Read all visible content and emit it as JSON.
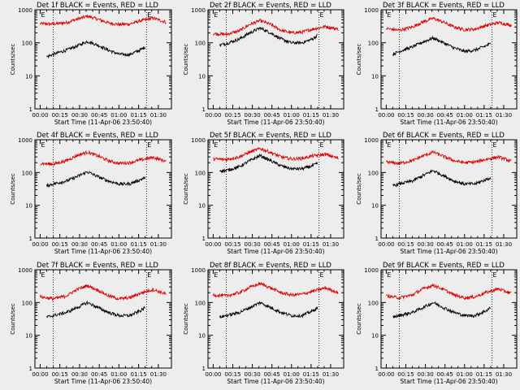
{
  "figure": {
    "background": "#ededed",
    "colors": {
      "events": "#000000",
      "lld": "#dd0000"
    }
  },
  "chart_data": [
    {
      "type": "line",
      "title": "Det 1f BLACK = Events, RED = LLD",
      "xlabel": "Start Time (11-Apr-06 23:50:40)",
      "ylabel": "Counts/sec",
      "yscale": "log",
      "ylim": [
        1,
        1000
      ],
      "x_ticks": [
        "00:00",
        "00:15",
        "00:30",
        "00:45",
        "01:00",
        "01:15",
        "01:30"
      ],
      "y_ticks": [
        "1",
        "10",
        "100",
        "1000"
      ],
      "markers": [
        {
          "label": "E",
          "x_min": 0
        },
        {
          "label": "E",
          "x_min": 81
        }
      ],
      "dotted_lines_x_min": [
        10,
        81
      ],
      "xlim_min": [
        -4,
        100
      ],
      "series": [
        {
          "x_min": [
            0,
            10,
            20,
            28,
            36,
            44,
            52,
            60,
            68,
            76,
            86,
            96
          ],
          "values": [
            380,
            370,
            410,
            520,
            640,
            520,
            400,
            360,
            370,
            460,
            560,
            420
          ]
        },
        {
          "x_min": [
            5,
            10,
            20,
            28,
            36,
            44,
            52,
            60,
            68,
            76,
            80
          ],
          "values": [
            38,
            45,
            60,
            80,
            110,
            85,
            60,
            45,
            44,
            60,
            75
          ]
        }
      ]
    },
    {
      "type": "line",
      "title": "Det 2f BLACK = Events, RED = LLD",
      "xlabel": "Start Time (11-Apr-06 23:50:40)",
      "ylabel": "Counts/sec",
      "yscale": "log",
      "ylim": [
        1,
        1000
      ],
      "x_ticks": [
        "00:00",
        "00:15",
        "00:30",
        "00:45",
        "01:00",
        "01:15",
        "01:30"
      ],
      "y_ticks": [
        "1",
        "10",
        "100",
        "1000"
      ],
      "markers": [
        {
          "label": "E",
          "x_min": 0
        },
        {
          "label": "E",
          "x_min": 81
        }
      ],
      "dotted_lines_x_min": [
        10,
        81
      ],
      "xlim_min": [
        -4,
        100
      ],
      "series": [
        {
          "x_min": [
            0,
            10,
            20,
            28,
            36,
            44,
            52,
            60,
            68,
            76,
            86,
            96
          ],
          "values": [
            190,
            180,
            230,
            360,
            470,
            360,
            240,
            200,
            210,
            260,
            310,
            260
          ]
        },
        {
          "x_min": [
            5,
            10,
            20,
            28,
            36,
            44,
            52,
            60,
            68,
            76,
            80
          ],
          "values": [
            85,
            95,
            130,
            200,
            280,
            200,
            130,
            100,
            100,
            130,
            170
          ]
        }
      ]
    },
    {
      "type": "line",
      "title": "Det 3f BLACK = Events, RED = LLD",
      "xlabel": "Start Time (11-Apr-06 23:50:40)",
      "ylabel": "Counts/sec",
      "yscale": "log",
      "ylim": [
        1,
        1000
      ],
      "x_ticks": [
        "00:00",
        "00:15",
        "00:30",
        "00:45",
        "01:00",
        "01:15",
        "01:30"
      ],
      "y_ticks": [
        "1",
        "10",
        "100",
        "1000"
      ],
      "markers": [
        {
          "label": "E",
          "x_min": 0
        },
        {
          "label": "E",
          "x_min": 81
        }
      ],
      "dotted_lines_x_min": [
        10,
        81
      ],
      "xlim_min": [
        -4,
        100
      ],
      "series": [
        {
          "x_min": [
            0,
            10,
            20,
            28,
            36,
            44,
            52,
            60,
            68,
            76,
            86,
            96
          ],
          "values": [
            270,
            240,
            300,
            430,
            550,
            420,
            300,
            250,
            260,
            330,
            410,
            340
          ]
        },
        {
          "x_min": [
            5,
            10,
            20,
            28,
            36,
            44,
            52,
            60,
            68,
            76,
            80
          ],
          "values": [
            45,
            55,
            75,
            105,
            140,
            100,
            70,
            55,
            60,
            80,
            95
          ]
        }
      ]
    },
    {
      "type": "line",
      "title": "Det 4f BLACK = Events, RED = LLD",
      "xlabel": "Start Time (11-Apr-06 23:50:40)",
      "ylabel": "Counts/sec",
      "yscale": "log",
      "ylim": [
        1,
        1000
      ],
      "x_ticks": [
        "00:00",
        "00:15",
        "00:30",
        "00:45",
        "01:00",
        "01:15",
        "01:30"
      ],
      "y_ticks": [
        "1",
        "10",
        "100",
        "1000"
      ],
      "markers": [
        {
          "label": "E",
          "x_min": 0
        },
        {
          "label": "E",
          "x_min": 81
        }
      ],
      "dotted_lines_x_min": [
        10,
        81
      ],
      "xlim_min": [
        -4,
        100
      ],
      "series": [
        {
          "x_min": [
            0,
            10,
            20,
            28,
            36,
            44,
            52,
            60,
            68,
            76,
            86,
            96
          ],
          "values": [
            190,
            180,
            230,
            330,
            420,
            320,
            230,
            190,
            200,
            240,
            290,
            220
          ]
        },
        {
          "x_min": [
            5,
            10,
            20,
            28,
            36,
            44,
            52,
            60,
            68,
            76,
            80
          ],
          "values": [
            40,
            45,
            55,
            75,
            105,
            75,
            55,
            45,
            45,
            60,
            70
          ]
        }
      ]
    },
    {
      "type": "line",
      "title": "Det 5f BLACK = Events, RED = LLD",
      "xlabel": "Start Time (11-Apr-06 23:50:40)",
      "ylabel": "Counts/sec",
      "yscale": "log",
      "ylim": [
        1,
        1000
      ],
      "x_ticks": [
        "00:00",
        "00:15",
        "00:30",
        "00:45",
        "01:00",
        "01:15",
        "01:30"
      ],
      "y_ticks": [
        "1",
        "10",
        "100",
        "1000"
      ],
      "markers": [
        {
          "label": "E",
          "x_min": 0
        },
        {
          "label": "E",
          "x_min": 81
        }
      ],
      "dotted_lines_x_min": [
        10,
        81
      ],
      "xlim_min": [
        -4,
        100
      ],
      "series": [
        {
          "x_min": [
            0,
            10,
            20,
            28,
            36,
            44,
            52,
            60,
            68,
            76,
            86,
            96
          ],
          "values": [
            260,
            250,
            300,
            420,
            540,
            410,
            300,
            260,
            270,
            320,
            360,
            270
          ]
        },
        {
          "x_min": [
            5,
            10,
            20,
            28,
            36,
            44,
            52,
            60,
            68,
            76,
            80
          ],
          "values": [
            115,
            115,
            150,
            230,
            330,
            230,
            160,
            130,
            130,
            160,
            190
          ]
        }
      ]
    },
    {
      "type": "line",
      "title": "Det 6f BLACK = Events, RED = LLD",
      "xlabel": "Start Time (11-Apr-06 23:50:40)",
      "ylabel": "Counts/sec",
      "yscale": "log",
      "ylim": [
        1,
        1000
      ],
      "x_ticks": [
        "00:00",
        "00:15",
        "00:30",
        "00:45",
        "01:00",
        "01:15",
        "01:30"
      ],
      "y_ticks": [
        "1",
        "10",
        "100",
        "1000"
      ],
      "markers": [
        {
          "label": "E",
          "x_min": 0
        },
        {
          "label": "E",
          "x_min": 81
        }
      ],
      "dotted_lines_x_min": [
        10,
        81
      ],
      "xlim_min": [
        -4,
        100
      ],
      "series": [
        {
          "x_min": [
            0,
            10,
            20,
            28,
            36,
            44,
            52,
            60,
            68,
            76,
            86,
            96
          ],
          "values": [
            210,
            190,
            230,
            320,
            420,
            310,
            230,
            200,
            210,
            250,
            300,
            220
          ]
        },
        {
          "x_min": [
            5,
            10,
            20,
            28,
            36,
            44,
            52,
            60,
            68,
            76,
            80
          ],
          "values": [
            40,
            45,
            55,
            80,
            115,
            80,
            55,
            45,
            45,
            60,
            70
          ]
        }
      ]
    },
    {
      "type": "line",
      "title": "Det 7f BLACK = Events, RED = LLD",
      "xlabel": "Start Time (11-Apr-06 23:50:40)",
      "ylabel": "Counts/sec",
      "yscale": "log",
      "ylim": [
        1,
        1000
      ],
      "x_ticks": [
        "00:00",
        "00:15",
        "00:30",
        "00:45",
        "01:00",
        "01:15",
        "01:30"
      ],
      "y_ticks": [
        "1",
        "10",
        "100",
        "1000"
      ],
      "markers": [
        {
          "label": "E",
          "x_min": 0
        },
        {
          "label": "E",
          "x_min": 81
        }
      ],
      "dotted_lines_x_min": [
        10,
        81
      ],
      "xlim_min": [
        -4,
        100
      ],
      "series": [
        {
          "x_min": [
            0,
            10,
            20,
            28,
            36,
            44,
            52,
            60,
            68,
            76,
            86,
            96
          ],
          "values": [
            150,
            130,
            160,
            250,
            330,
            240,
            160,
            130,
            140,
            190,
            250,
            180
          ]
        },
        {
          "x_min": [
            5,
            10,
            20,
            28,
            36,
            44,
            52,
            60,
            68,
            76,
            80
          ],
          "values": [
            36,
            40,
            50,
            70,
            100,
            70,
            50,
            40,
            40,
            55,
            70
          ]
        }
      ]
    },
    {
      "type": "line",
      "title": "Det 8f BLACK = Events, RED = LLD",
      "xlabel": "Start Time (11-Apr-06 23:50:40)",
      "ylabel": "Counts/sec",
      "yscale": "log",
      "ylim": [
        1,
        1000
      ],
      "x_ticks": [
        "00:00",
        "00:15",
        "00:30",
        "00:45",
        "01:00",
        "01:15",
        "01:30"
      ],
      "y_ticks": [
        "1",
        "10",
        "100",
        "1000"
      ],
      "markers": [
        {
          "label": "E",
          "x_min": 0
        },
        {
          "label": "E",
          "x_min": 81
        }
      ],
      "dotted_lines_x_min": [
        10,
        81
      ],
      "xlim_min": [
        -4,
        100
      ],
      "series": [
        {
          "x_min": [
            0,
            10,
            20,
            28,
            36,
            44,
            52,
            60,
            68,
            76,
            86,
            96
          ],
          "values": [
            170,
            160,
            200,
            290,
            380,
            280,
            200,
            170,
            180,
            220,
            280,
            200
          ]
        },
        {
          "x_min": [
            5,
            10,
            20,
            28,
            36,
            44,
            52,
            60,
            68,
            76,
            80
          ],
          "values": [
            36,
            40,
            50,
            70,
            100,
            70,
            50,
            40,
            40,
            55,
            70
          ]
        }
      ]
    },
    {
      "type": "line",
      "title": "Det 9f BLACK = Events, RED = LLD",
      "xlabel": "Start Time (11-Apr-06 23:50:40)",
      "ylabel": "Counts/sec",
      "yscale": "log",
      "ylim": [
        1,
        1000
      ],
      "x_ticks": [
        "00:00",
        "00:15",
        "00:30",
        "00:45",
        "01:00",
        "01:15",
        "01:30"
      ],
      "y_ticks": [
        "1",
        "10",
        "100",
        "1000"
      ],
      "markers": [
        {
          "label": "E",
          "x_min": 0
        },
        {
          "label": "E",
          "x_min": 81
        }
      ],
      "dotted_lines_x_min": [
        10,
        81
      ],
      "xlim_min": [
        -4,
        100
      ],
      "series": [
        {
          "x_min": [
            0,
            10,
            20,
            28,
            36,
            44,
            52,
            60,
            68,
            76,
            86,
            96
          ],
          "values": [
            160,
            140,
            170,
            260,
            340,
            250,
            170,
            140,
            150,
            200,
            260,
            190
          ]
        },
        {
          "x_min": [
            5,
            10,
            20,
            28,
            36,
            44,
            52,
            60,
            68,
            76,
            80
          ],
          "values": [
            36,
            40,
            50,
            70,
            100,
            70,
            50,
            40,
            40,
            55,
            70
          ]
        }
      ]
    }
  ]
}
